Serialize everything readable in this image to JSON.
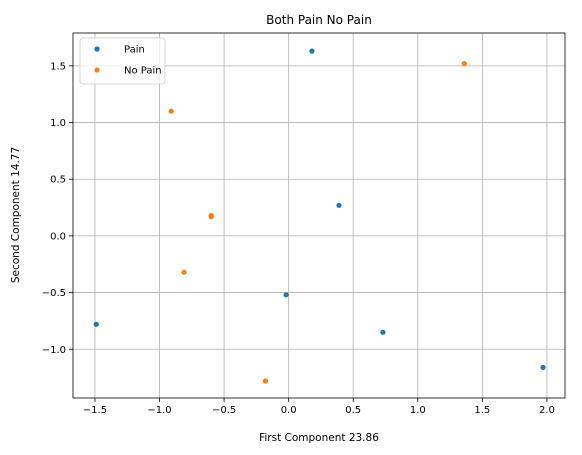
{
  "chart_data": {
    "type": "scatter",
    "title": "Both Pain No Pain",
    "xlabel": "First Component 23.86",
    "ylabel": "Second Component 14.77",
    "xlim": [
      -1.67,
      2.14
    ],
    "ylim": [
      -1.43,
      1.79
    ],
    "xticks": [
      -1.5,
      -1.0,
      -0.5,
      0.0,
      0.5,
      1.0,
      1.5,
      2.0
    ],
    "xtick_labels": [
      "−1.5",
      "−1.0",
      "−0.5",
      "0.0",
      "0.5",
      "1.0",
      "1.5",
      "2.0"
    ],
    "yticks": [
      -1.0,
      -0.5,
      0.0,
      0.5,
      1.0,
      1.5
    ],
    "ytick_labels": [
      "−1.0",
      "−0.5",
      "0.0",
      "0.5",
      "1.0",
      "1.5"
    ],
    "grid": true,
    "legend_position": "upper-left",
    "series": [
      {
        "name": "Pain",
        "color": "#1f77b4",
        "points": [
          {
            "x": -1.49,
            "y": -0.78
          },
          {
            "x": -0.02,
            "y": -0.52
          },
          {
            "x": 0.18,
            "y": 1.63
          },
          {
            "x": 0.39,
            "y": 0.27
          },
          {
            "x": 0.73,
            "y": -0.85
          },
          {
            "x": 1.97,
            "y": -1.16
          }
        ]
      },
      {
        "name": "No Pain",
        "color": "#ff7f0e",
        "points": [
          {
            "x": -0.91,
            "y": 1.1
          },
          {
            "x": -0.81,
            "y": -0.32
          },
          {
            "x": -0.6,
            "y": 0.17
          },
          {
            "x": -0.6,
            "y": 0.18
          },
          {
            "x": -0.18,
            "y": -1.28
          },
          {
            "x": 1.36,
            "y": 1.52
          }
        ]
      }
    ]
  }
}
